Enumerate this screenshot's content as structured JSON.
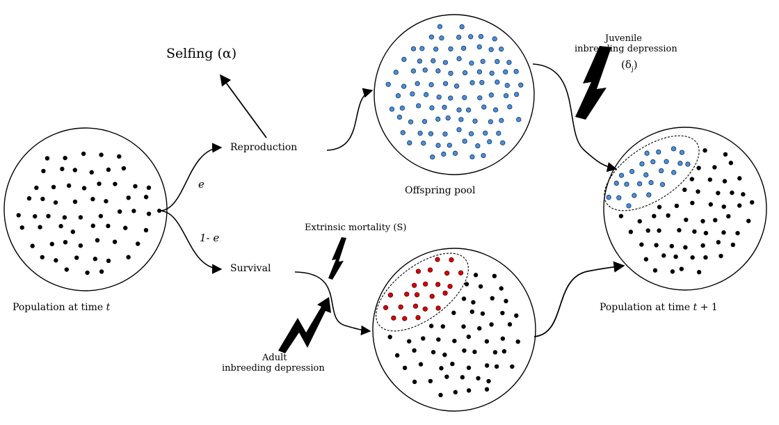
{
  "labels": {
    "selfing": "Selfing (α)",
    "reproduction": "Reproduction",
    "survival": "Survival",
    "e": "e",
    "one_minus_e": "1- e",
    "population_t_prefix": "Population at time",
    "population_t_var": "t",
    "population_t1_prefix": "Population at time",
    "population_t1_var": "t",
    "population_t1_suffix": "+ 1",
    "offspring_pool": "Offspring pool",
    "juvenile_line1": "Juvenile",
    "juvenile_line2": "inbreeding depression",
    "delta_j": "(δ",
    "delta_j_sub": "j",
    "delta_j_close": ")",
    "extrinsic": "Extrinsic mortality (S)",
    "adult_line1": "Adult",
    "adult_line2": "inbreeding depression"
  },
  "colors": {
    "adult_dot": "#000000",
    "offspring_dot": "#4a90d9",
    "dead_dot": "#dd0000",
    "line": "#000000"
  }
}
